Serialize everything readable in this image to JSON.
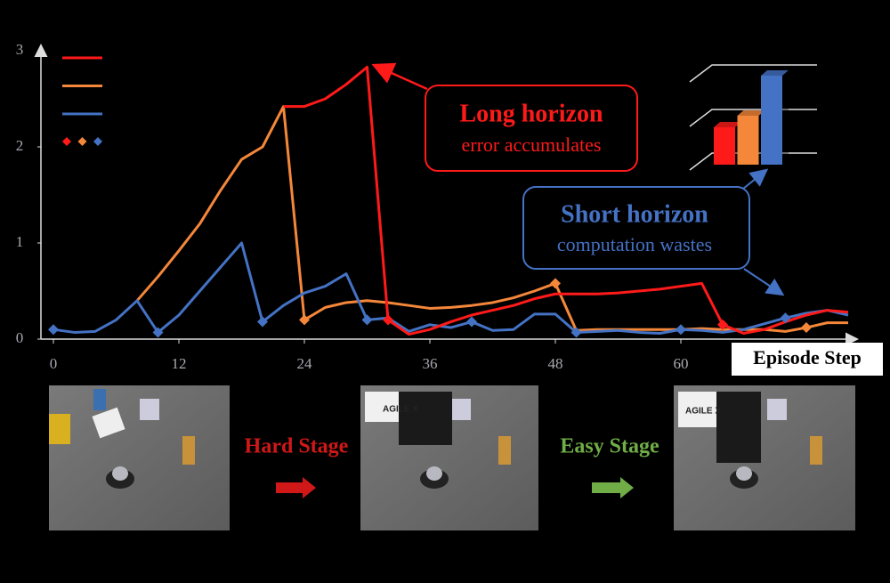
{
  "chart_data": [
    {
      "type": "line",
      "xlim": [
        0,
        77
      ],
      "ylim": [
        0,
        3
      ],
      "xticks": [
        0,
        12,
        24,
        36,
        48,
        60
      ],
      "yticks": [
        0,
        1,
        2,
        3
      ],
      "xlabel": "Episode Step",
      "series": [
        {
          "color": "#ff1a1a",
          "x": [
            22,
            24,
            26,
            28,
            30,
            32,
            34,
            36,
            38,
            40,
            42,
            44,
            46,
            48,
            50,
            52,
            54,
            56,
            58,
            60,
            62,
            64,
            66,
            68,
            70,
            72,
            74,
            76
          ],
          "values": [
            2.42,
            2.42,
            2.5,
            2.65,
            2.83,
            0.2,
            0.05,
            0.1,
            0.18,
            0.25,
            0.3,
            0.35,
            0.42,
            0.47,
            0.47,
            0.47,
            0.48,
            0.5,
            0.52,
            0.55,
            0.58,
            0.15,
            0.06,
            0.1,
            0.18,
            0.25,
            0.3,
            0.28
          ]
        },
        {
          "color": "#f4873a",
          "x": [
            8,
            10,
            12,
            14,
            16,
            18,
            20,
            22,
            24,
            26,
            28,
            30,
            32,
            34,
            36,
            38,
            40,
            42,
            44,
            46,
            48,
            50,
            52,
            54,
            56,
            58,
            60,
            62,
            64,
            66,
            68,
            70,
            72,
            74,
            76
          ],
          "values": [
            0.4,
            0.65,
            0.92,
            1.2,
            1.55,
            1.87,
            2.0,
            2.42,
            0.2,
            0.33,
            0.38,
            0.4,
            0.38,
            0.35,
            0.32,
            0.33,
            0.35,
            0.38,
            0.43,
            0.5,
            0.58,
            0.09,
            0.1,
            0.1,
            0.1,
            0.1,
            0.1,
            0.11,
            0.1,
            0.1,
            0.1,
            0.08,
            0.12,
            0.17,
            0.17
          ]
        },
        {
          "color": "#4472c4",
          "x": [
            0,
            2,
            4,
            6,
            8,
            10,
            12,
            14,
            16,
            18,
            20,
            22,
            24,
            26,
            28,
            30,
            32,
            34,
            36,
            38,
            40,
            42,
            44,
            46,
            48,
            50,
            52,
            54,
            56,
            58,
            60,
            62,
            64,
            66,
            68,
            70,
            72,
            74,
            76
          ],
          "values": [
            0.1,
            0.07,
            0.08,
            0.2,
            0.4,
            0.07,
            0.25,
            0.5,
            0.75,
            1.0,
            0.18,
            0.35,
            0.48,
            0.55,
            0.68,
            0.2,
            0.22,
            0.08,
            0.15,
            0.12,
            0.18,
            0.09,
            0.1,
            0.26,
            0.26,
            0.07,
            0.08,
            0.09,
            0.07,
            0.06,
            0.1,
            0.09,
            0.07,
            0.1,
            0.16,
            0.22,
            0.27,
            0.3,
            0.25
          ]
        }
      ],
      "markers": [
        {
          "color": "#ff1a1a",
          "x": [
            32,
            64
          ],
          "values": [
            0.2,
            0.15
          ]
        },
        {
          "color": "#f4873a",
          "x": [
            24,
            48,
            72
          ],
          "values": [
            0.2,
            0.58,
            0.12
          ]
        },
        {
          "color": "#4472c4",
          "x": [
            0,
            10,
            20,
            30,
            40,
            50,
            60,
            70
          ],
          "values": [
            0.1,
            0.07,
            0.18,
            0.2,
            0.18,
            0.07,
            0.1,
            0.22
          ]
        }
      ],
      "annotations": [
        {
          "title": "Long horizon",
          "text": "error accumulates",
          "color": "#ff1a1a"
        },
        {
          "title": "Short horizon",
          "text": "computation wastes",
          "color": "#4472c4"
        }
      ]
    },
    {
      "type": "bar",
      "ylim": [
        0,
        2.5
      ],
      "values": [
        0.84,
        1.1,
        2.0
      ],
      "colors": [
        "#ff1a1a",
        "#f4873a",
        "#4472c4"
      ]
    }
  ],
  "stages": [
    "Hard Stage",
    "Easy Stage"
  ],
  "photo_texts": [
    "AGILE X",
    "AGILE X"
  ]
}
